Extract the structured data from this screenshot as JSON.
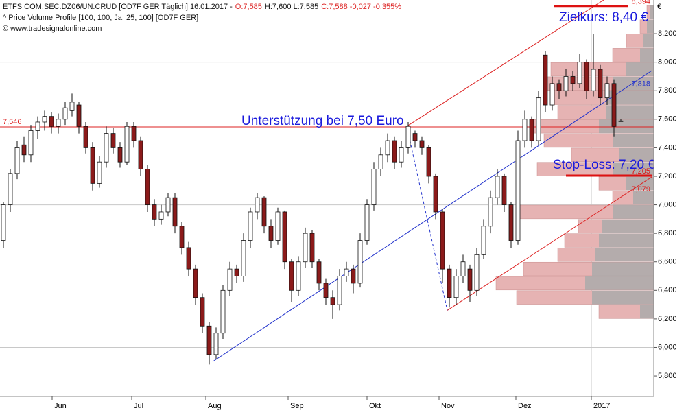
{
  "chart_data": {
    "type": "candlestick",
    "title": "ETFS COM.SEC.DZ06/UN.CRUD [OD7F GER  Täglich] 16.01.2017 -",
    "quote": [
      "O:7,585",
      "H:7,600 L:7,585",
      "C:7,588 -0,027 -0,355%"
    ],
    "subtitle": "^ Price Volume Profile [100, 100, Ja, 25, 100] [OD7F GER]",
    "source": "© www.tradesignalonline.com",
    "currency": "€",
    "up_color": "#ffffff",
    "down_color": "#8b1a1a",
    "xlim": [
      -0.5,
      94.8
    ],
    "ylim": [
      5.656,
      8.436
    ],
    "xticks": [
      {
        "value": 7.1,
        "label": "Jun"
      },
      {
        "value": 18.7,
        "label": "Jul"
      },
      {
        "value": 29.5,
        "label": "Aug"
      },
      {
        "value": 41.5,
        "label": "Sep"
      },
      {
        "value": 53,
        "label": "Okt"
      },
      {
        "value": 63.5,
        "label": "Nov"
      },
      {
        "value": 74.7,
        "label": "Dez"
      },
      {
        "value": 85.7,
        "label": "2017"
      }
    ],
    "yticks": [
      {
        "value": 5.8,
        "label": "5,800"
      },
      {
        "value": 6.0,
        "label": "6,000"
      },
      {
        "value": 6.2,
        "label": "6,200"
      },
      {
        "value": 6.4,
        "label": "6,400"
      },
      {
        "value": 6.6,
        "label": "6,600"
      },
      {
        "value": 6.8,
        "label": "6,800"
      },
      {
        "value": 7.0,
        "label": "7,000"
      },
      {
        "value": 7.2,
        "label": "7,200"
      },
      {
        "value": 7.4,
        "label": "7,400"
      },
      {
        "value": 7.6,
        "label": "7,600"
      },
      {
        "value": 7.8,
        "label": "7,800"
      },
      {
        "value": 8.0,
        "label": "8,000"
      },
      {
        "value": 8.2,
        "label": "8,200"
      }
    ],
    "grid_y": [
      6,
      7,
      8
    ],
    "grid_x": [
      85.7
    ],
    "ohlc": [
      [
        6.75,
        7.02,
        6.7,
        7.0
      ],
      [
        7.0,
        7.25,
        6.95,
        7.22
      ],
      [
        7.22,
        7.45,
        7.18,
        7.4
      ],
      [
        7.42,
        7.48,
        7.3,
        7.35
      ],
      [
        7.35,
        7.56,
        7.3,
        7.52
      ],
      [
        7.52,
        7.62,
        7.46,
        7.58
      ],
      [
        7.58,
        7.66,
        7.52,
        7.62
      ],
      [
        7.62,
        7.65,
        7.5,
        7.55
      ],
      [
        7.55,
        7.64,
        7.5,
        7.6
      ],
      [
        7.6,
        7.72,
        7.56,
        7.68
      ],
      [
        7.66,
        7.78,
        7.62,
        7.72
      ],
      [
        7.7,
        7.72,
        7.5,
        7.55
      ],
      [
        7.55,
        7.58,
        7.36,
        7.4
      ],
      [
        7.4,
        7.44,
        7.1,
        7.15
      ],
      [
        7.15,
        7.34,
        7.12,
        7.3
      ],
      [
        7.3,
        7.55,
        7.26,
        7.5
      ],
      [
        7.5,
        7.54,
        7.36,
        7.4
      ],
      [
        7.4,
        7.44,
        7.26,
        7.3
      ],
      [
        7.3,
        7.58,
        7.28,
        7.55
      ],
      [
        7.55,
        7.58,
        7.4,
        7.45
      ],
      [
        7.45,
        7.48,
        7.2,
        7.25
      ],
      [
        7.25,
        7.28,
        6.95,
        7.0
      ],
      [
        7.0,
        7.04,
        6.85,
        6.9
      ],
      [
        6.9,
        7.0,
        6.86,
        6.95
      ],
      [
        6.95,
        7.08,
        6.92,
        7.05
      ],
      [
        7.05,
        7.08,
        6.8,
        6.85
      ],
      [
        6.85,
        6.88,
        6.65,
        6.7
      ],
      [
        6.7,
        6.74,
        6.5,
        6.55
      ],
      [
        6.55,
        6.58,
        6.3,
        6.35
      ],
      [
        6.35,
        6.38,
        6.1,
        6.15
      ],
      [
        6.15,
        6.18,
        5.88,
        5.95
      ],
      [
        5.95,
        6.14,
        5.92,
        6.1
      ],
      [
        6.1,
        6.44,
        6.06,
        6.4
      ],
      [
        6.4,
        6.6,
        6.36,
        6.55
      ],
      [
        6.55,
        6.58,
        6.45,
        6.5
      ],
      [
        6.5,
        6.8,
        6.46,
        6.75
      ],
      [
        6.75,
        6.98,
        6.7,
        6.95
      ],
      [
        6.95,
        7.08,
        6.9,
        7.05
      ],
      [
        7.05,
        7.06,
        6.8,
        6.85
      ],
      [
        6.85,
        6.9,
        6.7,
        6.75
      ],
      [
        6.75,
        6.98,
        6.72,
        6.95
      ],
      [
        6.95,
        6.96,
        6.55,
        6.6
      ],
      [
        6.6,
        6.62,
        6.32,
        6.4
      ],
      [
        6.4,
        6.64,
        6.36,
        6.6
      ],
      [
        6.6,
        6.84,
        6.56,
        6.8
      ],
      [
        6.8,
        6.82,
        6.56,
        6.6
      ],
      [
        6.6,
        6.62,
        6.4,
        6.45
      ],
      [
        6.45,
        6.48,
        6.3,
        6.35
      ],
      [
        6.35,
        6.4,
        6.2,
        6.3
      ],
      [
        6.3,
        6.55,
        6.26,
        6.5
      ],
      [
        6.5,
        6.6,
        6.46,
        6.55
      ],
      [
        6.55,
        6.58,
        6.38,
        6.45
      ],
      [
        6.45,
        6.8,
        6.42,
        6.75
      ],
      [
        6.75,
        7.04,
        6.72,
        7.0
      ],
      [
        7.0,
        7.3,
        6.96,
        7.25
      ],
      [
        7.25,
        7.4,
        7.2,
        7.35
      ],
      [
        7.35,
        7.5,
        7.3,
        7.45
      ],
      [
        7.45,
        7.48,
        7.25,
        7.3
      ],
      [
        7.3,
        7.45,
        7.26,
        7.4
      ],
      [
        7.4,
        7.58,
        7.36,
        7.55
      ],
      [
        7.5,
        7.52,
        7.4,
        7.45
      ],
      [
        7.45,
        7.48,
        7.35,
        7.4
      ],
      [
        7.4,
        7.42,
        7.15,
        7.2
      ],
      [
        7.2,
        7.22,
        6.9,
        6.95
      ],
      [
        6.95,
        6.97,
        6.45,
        6.55
      ],
      [
        6.55,
        6.58,
        6.28,
        6.35
      ],
      [
        6.35,
        6.55,
        6.3,
        6.5
      ],
      [
        6.5,
        6.65,
        6.45,
        6.6
      ],
      [
        6.55,
        6.58,
        6.32,
        6.4
      ],
      [
        6.4,
        6.7,
        6.36,
        6.65
      ],
      [
        6.65,
        6.9,
        6.62,
        6.85
      ],
      [
        6.85,
        7.1,
        6.8,
        7.05
      ],
      [
        7.05,
        7.25,
        7.0,
        7.2
      ],
      [
        7.2,
        7.22,
        6.95,
        7.0
      ],
      [
        7.0,
        7.02,
        6.7,
        6.75
      ],
      [
        6.75,
        7.52,
        6.72,
        7.45
      ],
      [
        7.45,
        7.66,
        7.4,
        7.6
      ],
      [
        7.6,
        7.62,
        7.4,
        7.45
      ],
      [
        7.45,
        7.8,
        7.42,
        7.75
      ],
      [
        8.05,
        8.08,
        7.65,
        7.7
      ],
      [
        7.7,
        7.9,
        7.66,
        7.85
      ],
      [
        7.85,
        7.88,
        7.74,
        7.8
      ],
      [
        7.8,
        7.95,
        7.76,
        7.9
      ],
      [
        7.9,
        7.94,
        7.8,
        7.85
      ],
      [
        7.85,
        8.06,
        7.82,
        8.0
      ],
      [
        8.0,
        8.02,
        7.74,
        7.8
      ],
      [
        7.8,
        8.2,
        7.76,
        7.95
      ],
      [
        7.95,
        7.98,
        7.7,
        7.75
      ],
      [
        7.75,
        7.9,
        7.7,
        7.85
      ],
      [
        7.85,
        7.88,
        7.48,
        7.55
      ],
      [
        7.585,
        7.6,
        7.585,
        7.588
      ]
    ],
    "volume_profile": {
      "bin_width": 0.1,
      "volume_lim": [
        0,
        250
      ],
      "prices": [
        6.25,
        6.35,
        6.45,
        6.55,
        6.65,
        6.75,
        6.85,
        6.95,
        7.05,
        7.15,
        7.25,
        7.35,
        7.45,
        7.55,
        7.65,
        7.75,
        7.85,
        7.95,
        8.05,
        8.15,
        8.25,
        8.35
      ],
      "volumes": [
        80,
        200,
        230,
        190,
        140,
        130,
        110,
        200,
        60,
        80,
        170,
        120,
        160,
        180,
        140,
        150,
        160,
        150,
        60,
        40,
        20,
        10
      ],
      "volumes_grey": [
        20,
        90,
        100,
        90,
        85,
        80,
        75,
        60,
        30,
        40,
        60,
        50,
        60,
        80,
        70,
        70,
        60,
        40,
        20,
        15,
        10,
        5
      ],
      "color": "#e6b3b3",
      "grey_color": "#aaaaaa"
    },
    "lines": [
      {
        "from": [
          -0.5,
          7.546
        ],
        "to": [
          94.8,
          7.546
        ],
        "color": "#dd2222",
        "width": 1,
        "level": {
          "value": 7.546,
          "label": "7,546"
        }
      },
      {
        "from": [
          30.5,
          5.9
        ],
        "to": [
          94.5,
          7.94
        ],
        "color": "#2233cc",
        "width": 1,
        "level": {
          "value": 7.818,
          "label": "7,818"
        }
      },
      {
        "from": [
          58.8,
          7.55
        ],
        "to": [
          87.5,
          8.436
        ],
        "color": "#dd2222",
        "width": 1
      },
      {
        "from": [
          64.7,
          6.26
        ],
        "to": [
          94.5,
          7.195
        ],
        "color": "#dd2222",
        "width": 1,
        "level": {
          "value": 7.079,
          "label": "7,079"
        }
      },
      {
        "from": [
          58.8,
          7.55
        ],
        "to": [
          64.7,
          6.26
        ],
        "color": "#2233cc",
        "width": 1,
        "dashed": true
      },
      {
        "from": [
          80.3,
          8.394
        ],
        "to": [
          91,
          8.394
        ],
        "color": "#dd1111",
        "width": 3,
        "level": {
          "value": 8.394,
          "label": "8,394"
        }
      },
      {
        "from": [
          82,
          7.205
        ],
        "to": [
          94.5,
          7.205
        ],
        "color": "#dd1111",
        "width": 3,
        "level": {
          "value": 7.205,
          "label": "7,205"
        }
      }
    ],
    "annotations": [
      "Zielkurs: 8,40 €",
      "Stop-Loss: 7,20 €",
      "Unterstützung bei 7,50 Euro"
    ]
  }
}
